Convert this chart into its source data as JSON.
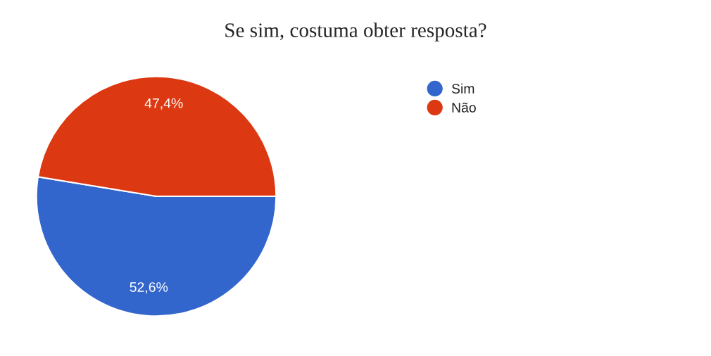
{
  "chart_data": {
    "type": "pie",
    "title": "Se sim, costuma obter resposta?",
    "categories": [
      "Sim",
      "Não"
    ],
    "values": [
      52.6,
      47.4
    ],
    "value_labels": [
      "52,6%",
      "47,4%"
    ],
    "colors": [
      "#3366cc",
      "#dc3912"
    ],
    "legend": "top right"
  }
}
